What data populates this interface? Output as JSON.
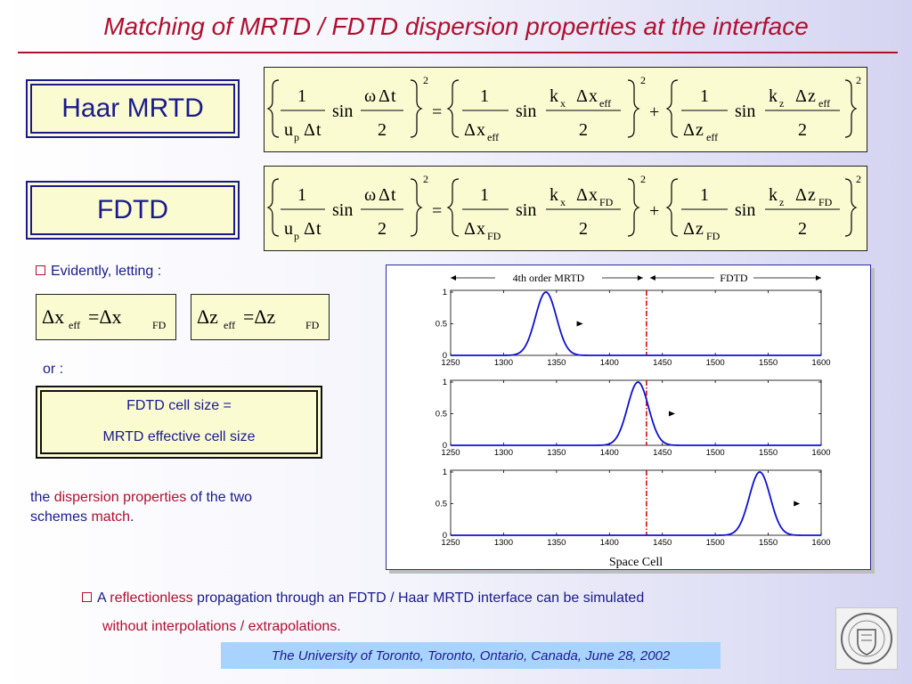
{
  "title": "Matching of MRTD / FDTD dispersion properties at the interface",
  "labels": {
    "haar": "Haar MRTD",
    "fdtd": "FDTD"
  },
  "eq1": {
    "one": "1",
    "up": "u",
    "p": "p",
    "delta": "Δ",
    "t": "t",
    "sin": "sin",
    "omega": "ω",
    "two": "2",
    "eq": "=",
    "plus": "+",
    "kx": "k",
    "x": "x",
    "z": "z",
    "eff": "eff",
    "sq": "2"
  },
  "eq2": {
    "fd": "FD"
  },
  "evidently": "Evidently, letting :",
  "small_eq": {
    "lhs1": "Δx",
    "eff": "eff",
    "mid": "=Δx",
    "fd": "FD",
    "lhs2": "Δz",
    "mid2": "=Δz"
  },
  "or": "or :",
  "note": {
    "line1": "FDTD cell size =",
    "line2": "MRTD effective cell size"
  },
  "para": {
    "a": "the ",
    "b": "dispersion properties",
    "c": " of the two",
    "d": "schemes ",
    "e": "match",
    "f": "."
  },
  "bottom": {
    "a": "A ",
    "b": "reflectionless",
    "c": " propagation through an FDTD / Haar MRTD interface can be simulated",
    "d": "without interpolations / extrapolations."
  },
  "footer": "The University of Toronto, Toronto, Ontario, Canada, June 28, 2002",
  "chart_data": {
    "type": "line",
    "xlabel": "Space Cell",
    "region_labels": [
      "4th order MRTD",
      "FDTD"
    ],
    "interface_x": 1435,
    "xlim": [
      1250,
      1600
    ],
    "ylim": [
      0,
      1
    ],
    "x_ticks": [
      "1250",
      "1300",
      "1350",
      "1400",
      "1450",
      "1500",
      "1550",
      "1600"
    ],
    "y_ticks": [
      "0",
      "0.5",
      "1"
    ],
    "panels": [
      {
        "peak_center": 1340,
        "peak_value": 1.0,
        "arrow_x": 1375
      },
      {
        "peak_center": 1427,
        "peak_value": 1.0,
        "arrow_x": 1462
      },
      {
        "peak_center": 1542,
        "peak_value": 1.0,
        "arrow_x": 1580
      }
    ],
    "colors": {
      "line": "#1010d0",
      "interface": "#d00000"
    }
  }
}
